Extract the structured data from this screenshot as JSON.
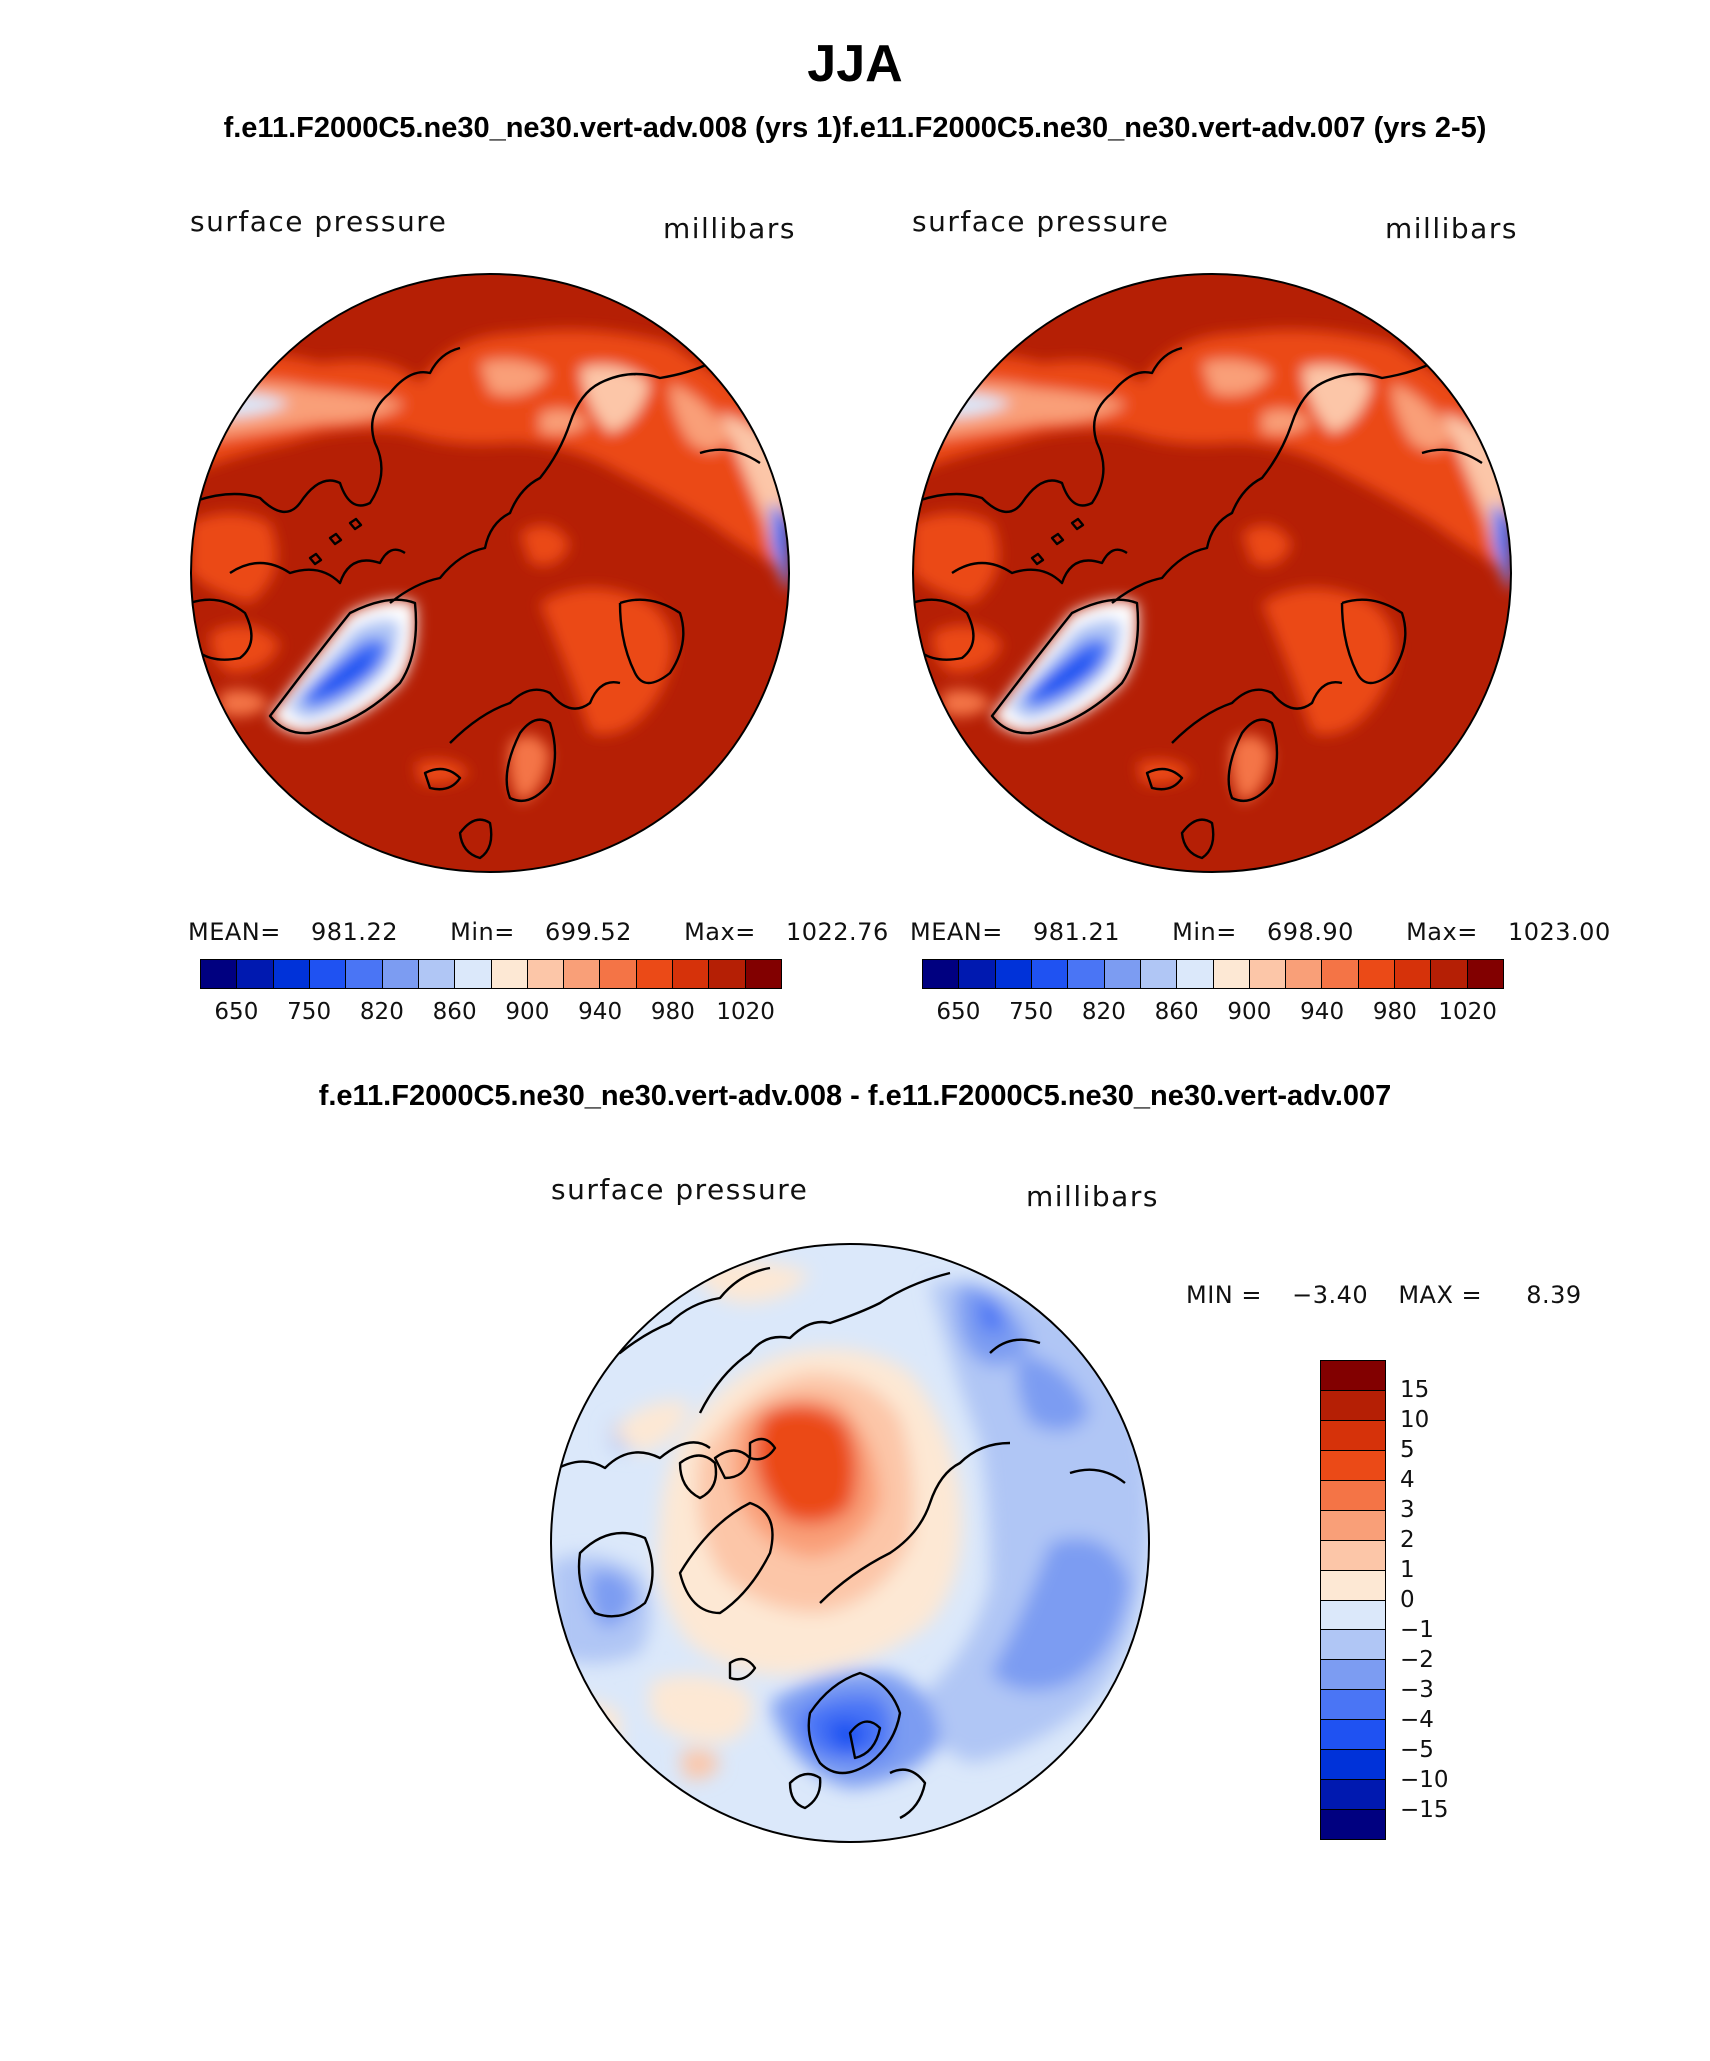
{
  "header": {
    "season": "JJA",
    "subtitle": "f.e11.F2000C5.ne30_ne30.vert-adv.008 (yrs 1)f.e11.F2000C5.ne30_ne30.vert-adv.007 (yrs 2-5)"
  },
  "panels": [
    {
      "variable": "surface pressure",
      "units": "millibars",
      "mean_label": "MEAN=",
      "mean_value": "981.22",
      "min_label": "Min=",
      "min_value": "699.52",
      "max_label": "Max=",
      "max_value": "1022.76"
    },
    {
      "variable": "surface pressure",
      "units": "millibars",
      "mean_label": "MEAN=",
      "mean_value": "981.21",
      "min_label": "Min=",
      "min_value": "698.90",
      "max_label": "Max=",
      "max_value": "1023.00"
    }
  ],
  "difference": {
    "title": "f.e11.F2000C5.ne30_ne30.vert-adv.008 - f.e11.F2000C5.ne30_ne30.vert-adv.007",
    "variable": "surface pressure",
    "units": "millibars",
    "min_label": "MIN =",
    "min_value": "−3.40",
    "max_label": "MAX =",
    "max_value": "8.39"
  },
  "abs_colorbar": {
    "colors": [
      "#000080",
      "#0019b0",
      "#0032d9",
      "#1f52f2",
      "#4a75f5",
      "#7c9cf2",
      "#b0c6f5",
      "#dbe8fa",
      "#fde8d4",
      "#fcc6a8",
      "#f99f78",
      "#f47446",
      "#eb4a17",
      "#d6320a",
      "#b51f05",
      "#820000"
    ],
    "ticks": [
      "650",
      "750",
      "820",
      "860",
      "900",
      "940",
      "980",
      "1020"
    ]
  },
  "diff_colorbar": {
    "colors": [
      "#820000",
      "#b51f05",
      "#d6320a",
      "#eb4a17",
      "#f47446",
      "#f99f78",
      "#fcc6a8",
      "#fde8d4",
      "#dbe8fa",
      "#b0c6f5",
      "#7c9cf2",
      "#4a75f5",
      "#1f52f2",
      "#0032d9",
      "#0019b0",
      "#000080"
    ],
    "ticks": [
      "15",
      "10",
      "5",
      "4",
      "3",
      "2",
      "1",
      "0",
      "−1",
      "−2",
      "−3",
      "−4",
      "−5",
      "−10",
      "−15"
    ]
  }
}
